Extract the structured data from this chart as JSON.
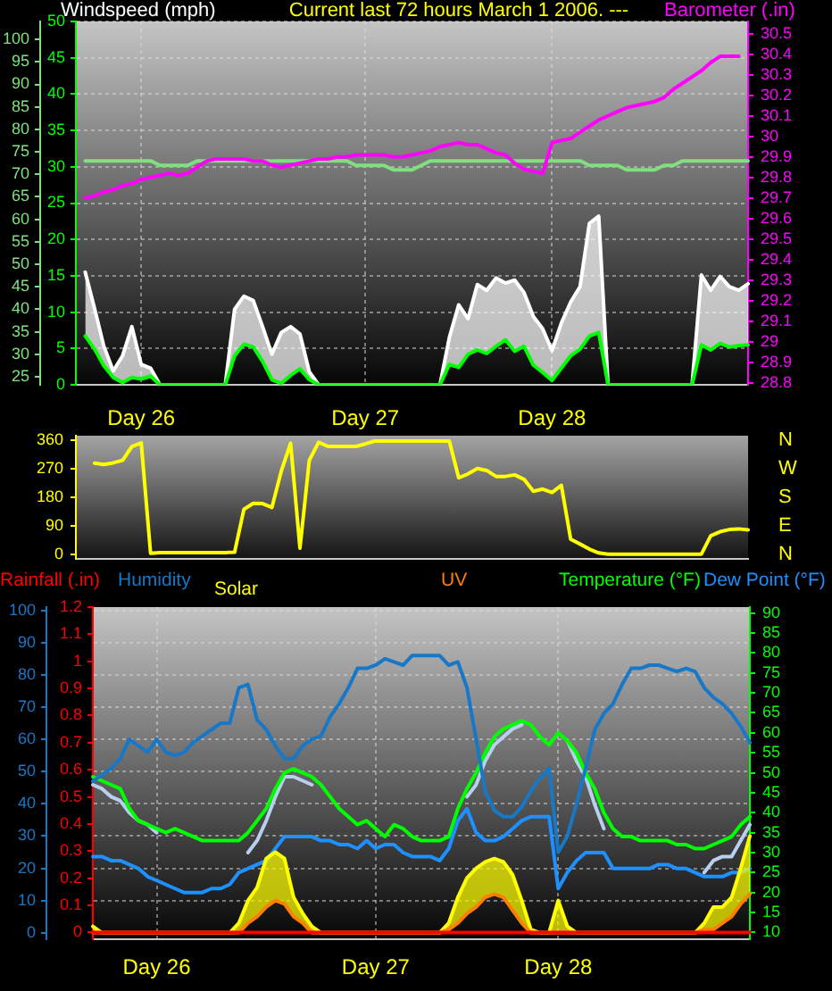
{
  "chart_data": [
    {
      "type": "line",
      "title": "Current last 72 hours March 1 2006. ---",
      "ylabel": "Windspeed (mph)",
      "y2label": "Barometer (.in)",
      "categories": [
        null,
        null,
        null,
        null,
        null,
        null,
        null,
        "Day 26",
        null,
        null,
        null,
        null,
        null,
        null,
        null,
        null,
        null,
        null,
        null,
        null,
        null,
        null,
        null,
        null,
        null,
        null,
        null,
        null,
        null,
        null,
        null,
        "Day 27",
        null,
        null,
        null,
        null,
        null,
        null,
        null,
        null,
        null,
        null,
        null,
        null,
        null,
        null,
        null,
        null,
        null,
        null,
        null,
        "Day 28",
        null,
        null,
        null,
        null,
        null,
        null,
        null,
        null,
        null,
        null,
        null,
        null,
        null,
        null,
        null,
        null,
        null,
        null,
        null,
        null,
        null
      ],
      "ylim": [
        0,
        50
      ],
      "yticks": [
        0,
        5,
        10,
        15,
        20,
        25,
        30,
        35,
        40,
        45,
        50
      ],
      "y2lim": [
        28.79,
        30.56
      ],
      "y2ticks": [
        28.8,
        28.9,
        29,
        29.1,
        29.2,
        29.3,
        29.4,
        29.5,
        29.6,
        29.7,
        29.8,
        29.9,
        30,
        30.1,
        30.2,
        30.3,
        30.4,
        30.5
      ],
      "y3lim": [
        23.2,
        104
      ],
      "y3ticks": [
        25,
        30,
        35,
        40,
        45,
        50,
        55,
        60,
        65,
        70,
        75,
        80,
        85,
        90,
        95,
        100
      ],
      "grid": true,
      "series": [
        {
          "type": "line",
          "color": "#00ff00",
          "values": [
            null,
            6.7,
            4.9,
            2.6,
            1.0,
            0.3,
            1.0,
            0.8,
            1.2,
            0,
            0,
            0,
            0,
            0,
            0,
            0,
            0,
            4.0,
            5.6,
            5.2,
            3.2,
            0.7,
            0.2,
            1.3,
            2.2,
            0.7,
            0,
            0,
            0,
            0,
            0,
            0,
            0,
            0,
            0,
            0,
            0,
            0,
            0,
            0,
            2.8,
            2.4,
            4.2,
            4.8,
            4.3,
            5.3,
            6.2,
            4.6,
            5.3,
            2.7,
            1.7,
            0.6,
            2.3,
            4.0,
            4.9,
            6.7,
            7.2,
            0,
            0,
            0,
            0,
            0,
            0,
            0,
            0,
            0,
            0,
            5.5,
            4.8,
            5.7,
            5.2,
            5.4,
            5.5
          ]
        },
        {
          "type": "area",
          "color": "#ffffff",
          "values": [
            null,
            15.5,
            10.5,
            5.3,
            1.9,
            4.0,
            8.0,
            2.8,
            2.3,
            0,
            0,
            0,
            0,
            0,
            0,
            0,
            0,
            10.4,
            12.2,
            11.6,
            8.0,
            4.2,
            7.2,
            8.0,
            7.0,
            1.8,
            0,
            0,
            0,
            0,
            0,
            0,
            0,
            0,
            0,
            0,
            0,
            0,
            0,
            0,
            6.5,
            11.0,
            9.1,
            13.8,
            13.0,
            14.7,
            14.0,
            14.4,
            12.7,
            9.4,
            7.7,
            4.7,
            8.5,
            11.4,
            13.5,
            22.2,
            23.2,
            0,
            0,
            0,
            0,
            0,
            0,
            0,
            0,
            0,
            0,
            15.1,
            13.0,
            14.9,
            13.5,
            13.0,
            13.9
          ]
        },
        {
          "type": "line",
          "axis": "y2",
          "color": "#ff00ff",
          "values": [
            null,
            29.7,
            29.71,
            29.73,
            29.74,
            29.76,
            29.77,
            29.79,
            29.8,
            29.81,
            29.82,
            29.81,
            29.82,
            29.85,
            29.88,
            29.89,
            29.89,
            29.89,
            29.89,
            29.88,
            29.88,
            29.86,
            29.85,
            29.86,
            29.87,
            29.88,
            29.89,
            29.89,
            29.9,
            29.9,
            29.91,
            29.91,
            29.91,
            29.91,
            29.9,
            29.9,
            29.91,
            29.92,
            29.93,
            29.95,
            29.96,
            29.97,
            29.96,
            29.96,
            29.94,
            29.92,
            29.91,
            29.87,
            29.84,
            29.83,
            29.82,
            29.97,
            29.98,
            29.99,
            30.02,
            30.05,
            30.08,
            30.1,
            30.12,
            30.14,
            30.15,
            30.16,
            30.17,
            30.19,
            30.23,
            30.26,
            30.29,
            30.32,
            30.36,
            30.39,
            30.39,
            30.39,
            null
          ]
        },
        {
          "type": "line",
          "axis": "y3",
          "color": "#80e080",
          "values": [
            null,
            73,
            73,
            73,
            73,
            73,
            73,
            73,
            73,
            72,
            72,
            72,
            72,
            73,
            73,
            73,
            73,
            73,
            73,
            73,
            73,
            73,
            73,
            73,
            73,
            73,
            73,
            73,
            73,
            73,
            72,
            72,
            72,
            72,
            71,
            71,
            71,
            72,
            73,
            73,
            73,
            73,
            73,
            73,
            73,
            73,
            73,
            73,
            73,
            73,
            73,
            73,
            73,
            73,
            73,
            72,
            72,
            72,
            72,
            71,
            71,
            71,
            71,
            72,
            72,
            73,
            73,
            73,
            73,
            73,
            73,
            73,
            73
          ]
        }
      ]
    },
    {
      "type": "line",
      "categories": [
        null,
        null,
        null,
        null,
        null,
        null,
        null,
        null,
        null,
        null,
        null,
        null,
        null,
        null,
        null,
        null,
        null,
        null,
        null,
        null,
        null,
        null,
        null,
        null,
        null,
        null,
        null,
        null,
        null,
        null,
        null,
        null,
        null,
        null,
        null,
        null,
        null,
        null,
        null,
        null,
        null,
        null,
        null,
        null,
        null,
        null,
        null,
        null,
        null,
        null,
        null,
        null,
        null,
        null,
        null,
        null,
        null,
        null,
        null,
        null,
        null,
        null,
        null,
        null,
        null,
        null,
        null,
        null,
        null,
        null,
        null,
        null,
        null
      ],
      "ylim": [
        -15,
        375
      ],
      "yticks": [
        0,
        90,
        180,
        270,
        360
      ],
      "tick_labels": "y",
      "annotations": [
        "N",
        "W",
        "S",
        "E",
        "N"
      ],
      "series": [
        {
          "type": "line",
          "color": "#ffff00",
          "values": [
            null,
            null,
            288,
            284,
            289,
            297,
            341,
            352,
            3,
            5,
            5,
            5,
            5,
            5,
            5,
            5,
            5,
            6,
            142,
            161,
            160,
            148,
            263,
            351,
            19,
            297,
            354,
            341,
            341,
            341,
            341,
            349,
            358,
            358,
            358,
            358,
            358,
            358,
            358,
            358,
            358,
            242,
            254,
            271,
            265,
            246,
            246,
            251,
            237,
            199,
            206,
            195,
            218,
            47,
            32,
            16,
            4,
            0,
            0,
            0,
            0,
            0,
            0,
            0,
            0,
            0,
            0,
            0,
            58,
            71,
            78,
            80,
            77
          ]
        }
      ]
    },
    {
      "type": "line",
      "categories": [
        null,
        null,
        null,
        null,
        null,
        null,
        null,
        "Day 26",
        null,
        null,
        null,
        null,
        null,
        null,
        null,
        null,
        null,
        null,
        null,
        null,
        null,
        null,
        null,
        null,
        null,
        null,
        null,
        null,
        null,
        null,
        null,
        "Day 27",
        null,
        null,
        null,
        null,
        null,
        null,
        null,
        null,
        null,
        null,
        null,
        null,
        null,
        null,
        null,
        null,
        null,
        null,
        null,
        "Day 28",
        null,
        null,
        null,
        null,
        null,
        null,
        null,
        null,
        null,
        null,
        null,
        null,
        null,
        null,
        null,
        null,
        null,
        null,
        null,
        null,
        null
      ],
      "ylim": [
        -2,
        101
      ],
      "yticks": [
        0,
        10,
        20,
        30,
        40,
        50,
        60,
        70,
        80,
        90,
        100
      ],
      "y2lim": [
        8.3,
        91.5
      ],
      "y2ticks": [
        10,
        15,
        20,
        25,
        30,
        35,
        40,
        45,
        50,
        55,
        60,
        65,
        70,
        75,
        80,
        85,
        90
      ],
      "y3lim": [
        -0.025,
        1.2
      ],
      "y3ticks": [
        0,
        0.1,
        0.2,
        0.3,
        0.4,
        0.5,
        0.6,
        0.7,
        0.8,
        0.9,
        1,
        1.1,
        1.2
      ],
      "grid": true,
      "legend": "top",
      "series": [
        {
          "name": "Rainfall (.in)",
          "type": "line",
          "axis": "y3",
          "color": "#ff0000",
          "values": [
            0,
            0,
            0,
            0,
            0,
            0,
            0,
            0,
            0,
            0,
            0,
            0,
            0,
            0,
            0,
            0,
            0,
            0,
            0,
            0,
            0,
            0,
            0,
            0,
            0,
            0,
            0,
            0,
            0,
            0,
            0,
            0,
            0,
            0,
            0,
            0,
            0,
            0,
            0,
            0,
            0,
            0,
            0,
            0,
            0,
            0,
            0,
            0,
            0,
            0,
            0,
            0,
            0,
            0,
            0,
            0,
            0,
            0,
            0,
            0,
            0,
            0,
            0,
            0,
            0,
            0,
            0,
            0,
            0,
            0,
            0,
            0,
            0
          ]
        },
        {
          "name": "Humidity",
          "type": "line",
          "color": "#1878c8",
          "values": [
            47,
            49,
            51,
            54,
            60,
            58,
            56,
            60,
            56,
            55,
            56,
            59,
            61,
            63,
            65,
            65,
            76,
            77,
            66,
            63,
            58,
            54,
            54,
            58,
            60,
            61,
            67,
            71,
            76,
            82,
            82,
            83,
            85,
            84,
            83,
            86,
            86,
            86,
            86,
            83,
            84,
            76,
            60,
            44,
            38,
            36,
            36,
            39,
            44,
            48,
            51,
            25,
            30,
            40,
            51,
            63,
            68,
            71,
            77,
            82,
            82,
            83,
            83,
            82,
            81,
            82,
            81,
            76,
            73,
            71,
            68,
            64,
            59
          ]
        },
        {
          "name": "UV",
          "type": "line",
          "color": "#ff8000",
          "values": [
            0,
            0,
            0,
            0,
            0,
            0,
            0,
            0,
            0,
            0,
            0,
            0,
            0,
            0,
            0,
            0,
            0,
            3,
            5,
            8,
            10,
            9,
            5,
            3,
            0,
            0,
            0,
            0,
            0,
            0,
            0,
            0,
            0,
            0,
            0,
            0,
            0,
            0,
            0,
            1,
            3,
            6,
            8,
            11,
            12,
            11,
            7,
            3,
            0,
            0,
            0,
            0,
            0,
            0,
            0,
            0,
            0,
            0,
            0,
            0,
            0,
            0,
            0,
            0,
            0,
            0,
            0,
            1,
            1,
            3,
            5,
            9,
            12
          ]
        },
        {
          "name": "Solar",
          "type": "area",
          "color": "#ffff00",
          "values": [
            2,
            0,
            0,
            0,
            0,
            0,
            0,
            0,
            0,
            0,
            0,
            0,
            0,
            0,
            0,
            0,
            3,
            10,
            14,
            23,
            25,
            23,
            11,
            6,
            2,
            0,
            0,
            0,
            0,
            0,
            0,
            0,
            0,
            0,
            0,
            0,
            0,
            0,
            0,
            3,
            11,
            17,
            20,
            22,
            23,
            22,
            18,
            10,
            1,
            0,
            0,
            10,
            2,
            0,
            0,
            0,
            0,
            0,
            0,
            0,
            0,
            0,
            0,
            0,
            0,
            0,
            0,
            3,
            8,
            8,
            11,
            20,
            30
          ]
        },
        {
          "name": "Temperature (°F)",
          "type": "line",
          "axis": "y2",
          "color": "#00ff00",
          "values": [
            49,
            48,
            47,
            46,
            41,
            38,
            37,
            36,
            35,
            36,
            35,
            34,
            33,
            33,
            33,
            33,
            33,
            35,
            38,
            41,
            46,
            50,
            51,
            50,
            49,
            47,
            44,
            41,
            39,
            37,
            38,
            36,
            34,
            37,
            36,
            34,
            33,
            33,
            33,
            34,
            41,
            46,
            50,
            55,
            59,
            61,
            62,
            63,
            62,
            59,
            57,
            60,
            58,
            55,
            50,
            46,
            40,
            36,
            34,
            34,
            33,
            33,
            33,
            33,
            32,
            32,
            31,
            31,
            32,
            33,
            34,
            37,
            39
          ]
        },
        {
          "name": "Dew Point (°F)",
          "type": "line",
          "axis": "y2",
          "color": "#1e90ff",
          "values": [
            29,
            29,
            28,
            28,
            27,
            26,
            24,
            23,
            22,
            21,
            20,
            20,
            20,
            21,
            21,
            22,
            25,
            26,
            27,
            28,
            31,
            34,
            34,
            34,
            34,
            33,
            33,
            32,
            32,
            31,
            33,
            31,
            32,
            32,
            30,
            29,
            29,
            29,
            28,
            31,
            38,
            41,
            35,
            33,
            33,
            34,
            36,
            38,
            39,
            39,
            39,
            21,
            25,
            28,
            30,
            30,
            30,
            26,
            26,
            26,
            26,
            26,
            27,
            27,
            26,
            26,
            25,
            24,
            24,
            24,
            25,
            25,
            26
          ]
        },
        {
          "type": "line",
          "axis": "y2",
          "color": "#b8d0f0",
          "values": [
            47,
            46,
            44,
            43,
            40,
            38,
            37,
            35,
            null,
            null,
            null,
            null,
            null,
            null,
            null,
            null,
            null,
            30,
            33,
            38,
            44,
            49,
            49,
            48,
            47,
            null,
            null,
            null,
            null,
            null,
            null,
            null,
            null,
            null,
            null,
            null,
            null,
            null,
            null,
            null,
            null,
            44,
            47,
            53,
            57,
            59,
            61,
            62,
            null,
            null,
            null,
            null,
            58,
            53,
            49,
            42,
            36,
            null,
            null,
            null,
            null,
            null,
            null,
            null,
            null,
            null,
            null,
            25,
            28,
            29,
            29,
            33,
            37
          ]
        }
      ]
    }
  ]
}
